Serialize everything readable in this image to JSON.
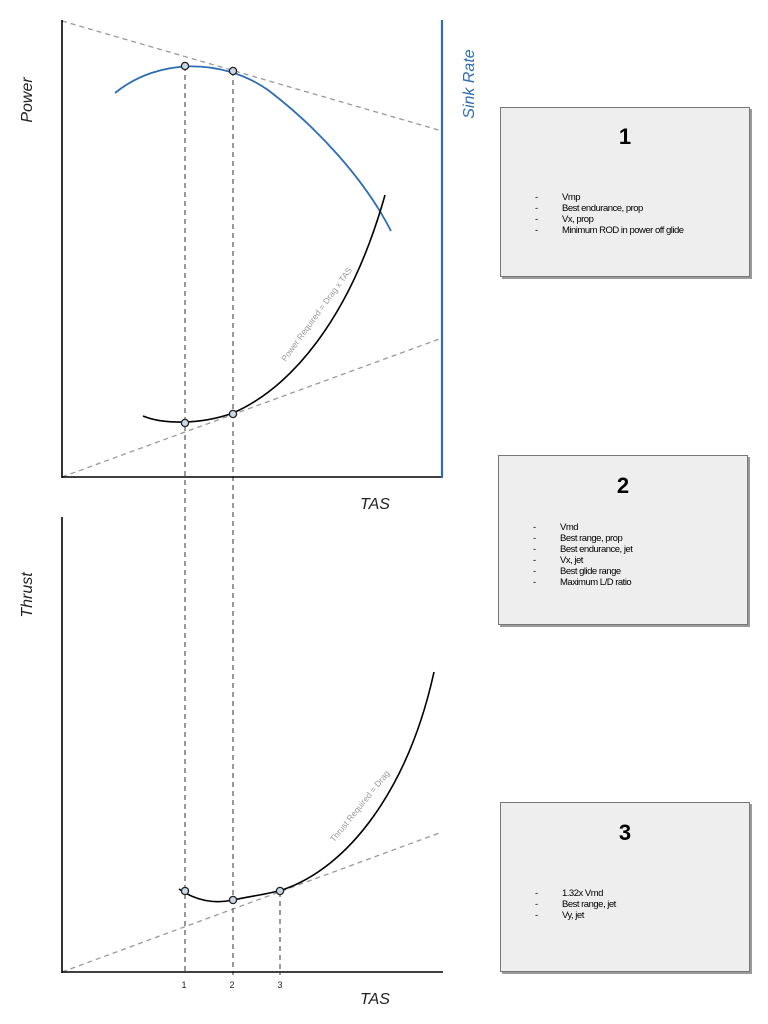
{
  "chart_data": [
    {
      "type": "line",
      "ylabel": "Power",
      "y2label": "Sink Rate",
      "xlabel": "TAS",
      "curve_label": "Power Required = Drag x TAS",
      "colors": {
        "power_curve": "#000000",
        "sink_rate_curve": "#2e6db5",
        "sink_rate_axis": "#2e6db5",
        "guides": "#999999"
      }
    },
    {
      "type": "line",
      "ylabel": "Thrust",
      "xlabel": "TAS",
      "curve_label": "Thrust Required = Drag",
      "x_ticks": [
        "1",
        "2",
        "3"
      ],
      "colors": {
        "thrust_curve": "#000000",
        "guides": "#999999"
      }
    }
  ],
  "boxes": [
    {
      "number": "1",
      "items": [
        "Vmp",
        "Best endurance, prop",
        "Vx, prop",
        "Minimum ROD in power off glide"
      ]
    },
    {
      "number": "2",
      "items": [
        "Vmd",
        "Best range, prop",
        "Best endurance, jet",
        "Vx, jet",
        "Best glide range",
        "Maximum L/D ratio"
      ]
    },
    {
      "number": "3",
      "items": [
        "1.32x Vmd",
        "Best range, jet",
        "Vy, jet"
      ]
    }
  ]
}
